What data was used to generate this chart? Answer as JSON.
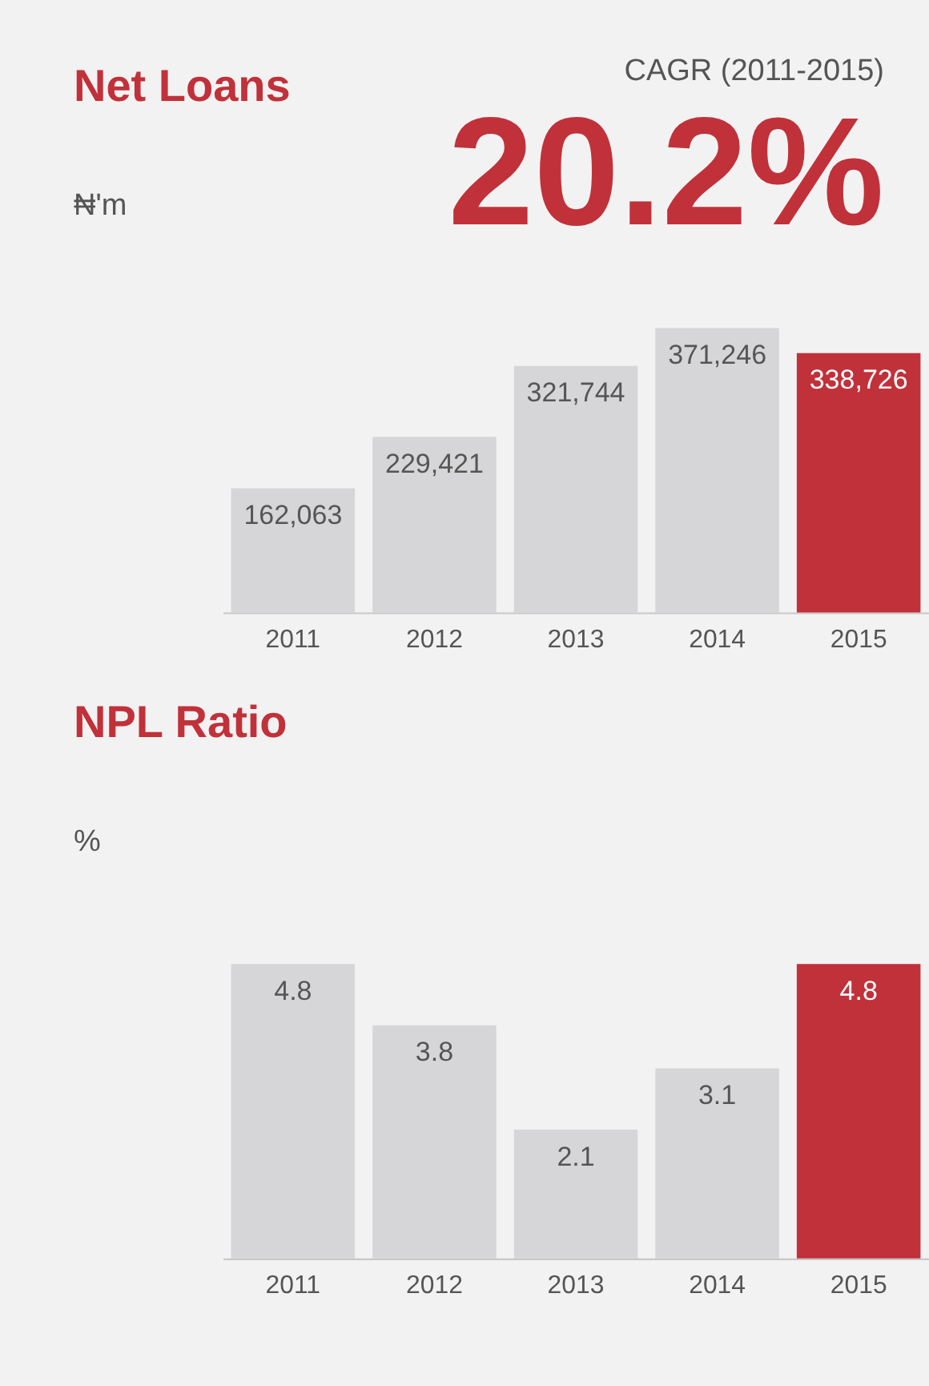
{
  "chart_data": [
    {
      "type": "bar",
      "title": "Net Loans",
      "subtitle": "₦'m",
      "annotations": [
        "CAGR (2011-2015)",
        "20.2%"
      ],
      "categories": [
        "2011",
        "2012",
        "2013",
        "2014",
        "2015"
      ],
      "values": [
        162063,
        229421,
        321744,
        371246,
        338726
      ],
      "value_labels": [
        "162,063",
        "229,421",
        "321,744",
        "371,246",
        "338,726"
      ],
      "colors": [
        "#d6d6d8",
        "#d6d6d8",
        "#d6d6d8",
        "#d6d6d8",
        "#c1313a"
      ],
      "data_labels": true
    },
    {
      "type": "bar",
      "title": "NPL Ratio",
      "subtitle": "%",
      "categories": [
        "2011",
        "2012",
        "2013",
        "2014",
        "2015"
      ],
      "values": [
        4.8,
        3.8,
        2.1,
        3.1,
        4.8
      ],
      "colors": [
        "#d6d6d8",
        "#d6d6d8",
        "#d6d6d8",
        "#d6d6d8",
        "#c1313a"
      ],
      "data_labels": true
    }
  ]
}
